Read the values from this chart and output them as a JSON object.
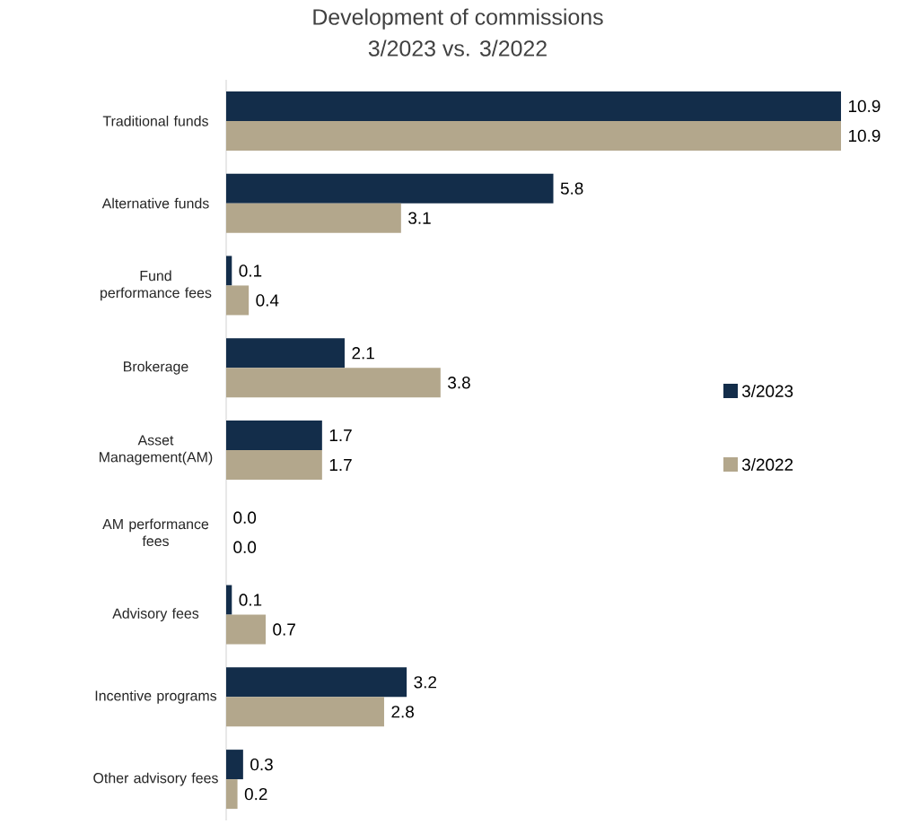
{
  "chart_data": {
    "type": "bar",
    "orientation": "horizontal",
    "title": "Development of commissions",
    "subtitle": "3/2023 vs. 3/2022",
    "categories": [
      "Traditional funds",
      "Alternative funds",
      "Fund performance fees",
      "Brokerage",
      "Asset Management(AM)",
      "AM performance fees",
      "Advisory fees",
      "Incentive programs",
      "Other advisory fees"
    ],
    "series": [
      {
        "name": "3/2023",
        "color": "#132d4a",
        "values": [
          10.9,
          5.8,
          0.1,
          2.1,
          1.7,
          0.0,
          0.1,
          3.2,
          0.3
        ],
        "value_labels": [
          "10.9",
          "5.8",
          "0.1",
          "2.1",
          "1.7",
          "0.0",
          "0.1",
          "3.2",
          "0.3"
        ]
      },
      {
        "name": "3/2022",
        "color": "#b3a78c",
        "values": [
          10.9,
          3.1,
          0.4,
          3.8,
          1.7,
          0.0,
          0.7,
          2.8,
          0.2
        ],
        "value_labels": [
          "10.9",
          "3.1",
          "0.4",
          "3.8",
          "1.7",
          "0.0",
          "0.7",
          "2.8",
          "0.2"
        ]
      }
    ],
    "tick_labels": "y",
    "legend": "right"
  }
}
